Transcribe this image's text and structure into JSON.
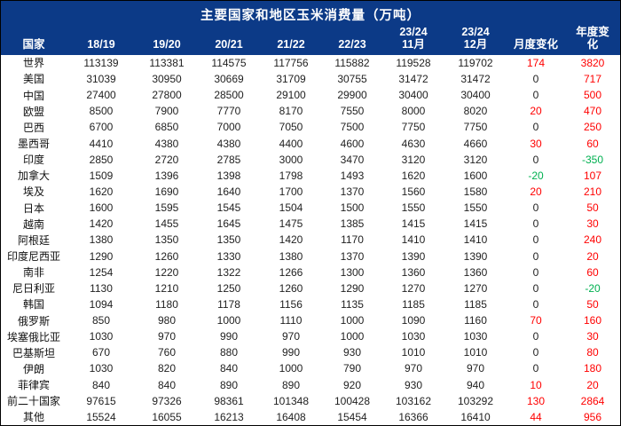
{
  "chart_data": {
    "type": "table",
    "title": "主要国家和地区玉米消费量（万吨）",
    "unit": "万吨",
    "columns": [
      {
        "label_lines": [
          "国家"
        ]
      },
      {
        "label_lines": [
          "18/19"
        ]
      },
      {
        "label_lines": [
          "19/20"
        ]
      },
      {
        "label_lines": [
          "20/21"
        ]
      },
      {
        "label_lines": [
          "21/22"
        ]
      },
      {
        "label_lines": [
          "22/23"
        ]
      },
      {
        "label_lines": [
          "23/24",
          "11月"
        ]
      },
      {
        "label_lines": [
          "23/24",
          "12月"
        ]
      },
      {
        "label_lines": [
          "月度变化"
        ]
      },
      {
        "label_lines": [
          "年度变",
          "化"
        ]
      }
    ],
    "rows": [
      {
        "country": "世界",
        "values": [
          113139,
          113381,
          114575,
          117756,
          115882,
          119528,
          119702
        ],
        "monthly_change": 174,
        "yearly_change": 3820
      },
      {
        "country": "美国",
        "values": [
          31039,
          30950,
          30669,
          31709,
          30755,
          31472,
          31472
        ],
        "monthly_change": 0,
        "yearly_change": 717
      },
      {
        "country": "中国",
        "values": [
          27400,
          27800,
          28500,
          29100,
          29900,
          30400,
          30400
        ],
        "monthly_change": 0,
        "yearly_change": 500
      },
      {
        "country": "欧盟",
        "values": [
          8500,
          7900,
          7770,
          8170,
          7550,
          8000,
          8020
        ],
        "monthly_change": 20,
        "yearly_change": 470
      },
      {
        "country": "巴西",
        "values": [
          6700,
          6850,
          7000,
          7050,
          7500,
          7750,
          7750
        ],
        "monthly_change": 0,
        "yearly_change": 250
      },
      {
        "country": "墨西哥",
        "values": [
          4410,
          4380,
          4380,
          4400,
          4600,
          4630,
          4660
        ],
        "monthly_change": 30,
        "yearly_change": 60
      },
      {
        "country": "印度",
        "values": [
          2850,
          2720,
          2785,
          3000,
          3470,
          3120,
          3120
        ],
        "monthly_change": 0,
        "yearly_change": -350
      },
      {
        "country": "加拿大",
        "values": [
          1509,
          1396,
          1398,
          1798,
          1493,
          1620,
          1600
        ],
        "monthly_change": -20,
        "yearly_change": 107
      },
      {
        "country": "埃及",
        "values": [
          1620,
          1690,
          1640,
          1700,
          1370,
          1560,
          1580
        ],
        "monthly_change": 20,
        "yearly_change": 210
      },
      {
        "country": "日本",
        "values": [
          1600,
          1595,
          1545,
          1504,
          1500,
          1550,
          1550
        ],
        "monthly_change": 0,
        "yearly_change": 50
      },
      {
        "country": "越南",
        "values": [
          1420,
          1455,
          1645,
          1475,
          1385,
          1415,
          1415
        ],
        "monthly_change": 0,
        "yearly_change": 30
      },
      {
        "country": "阿根廷",
        "values": [
          1380,
          1350,
          1350,
          1420,
          1170,
          1410,
          1410
        ],
        "monthly_change": 0,
        "yearly_change": 240
      },
      {
        "country": "印度尼西亚",
        "values": [
          1290,
          1260,
          1330,
          1380,
          1370,
          1390,
          1390
        ],
        "monthly_change": 0,
        "yearly_change": 20
      },
      {
        "country": "南非",
        "values": [
          1254,
          1220,
          1322,
          1266,
          1300,
          1360,
          1360
        ],
        "monthly_change": 0,
        "yearly_change": 60
      },
      {
        "country": "尼日利亚",
        "values": [
          1130,
          1210,
          1250,
          1260,
          1290,
          1270,
          1270
        ],
        "monthly_change": 0,
        "yearly_change": -20
      },
      {
        "country": "韩国",
        "values": [
          1094,
          1180,
          1178,
          1156,
          1135,
          1185,
          1185
        ],
        "monthly_change": 0,
        "yearly_change": 50
      },
      {
        "country": "俄罗斯",
        "values": [
          850,
          980,
          1000,
          1110,
          1000,
          1090,
          1160
        ],
        "monthly_change": 70,
        "yearly_change": 160
      },
      {
        "country": "埃塞俄比亚",
        "values": [
          1030,
          970,
          990,
          970,
          1000,
          1030,
          1030
        ],
        "monthly_change": 0,
        "yearly_change": 30
      },
      {
        "country": "巴基斯坦",
        "values": [
          670,
          760,
          880,
          990,
          930,
          1010,
          1010
        ],
        "monthly_change": 0,
        "yearly_change": 80
      },
      {
        "country": "伊朗",
        "values": [
          1030,
          820,
          840,
          1000,
          790,
          970,
          970
        ],
        "monthly_change": 0,
        "yearly_change": 180
      },
      {
        "country": "菲律宾",
        "values": [
          840,
          840,
          890,
          890,
          920,
          930,
          940
        ],
        "monthly_change": 10,
        "yearly_change": 20
      },
      {
        "country": "前二十国家",
        "values": [
          97615,
          97326,
          98361,
          101348,
          100428,
          103162,
          103292
        ],
        "monthly_change": 130,
        "yearly_change": 2864
      },
      {
        "country": "其他",
        "values": [
          15524,
          16055,
          16213,
          16408,
          15454,
          16366,
          16410
        ],
        "monthly_change": 44,
        "yearly_change": 956
      }
    ],
    "colors": {
      "header_background": "#0C3A87",
      "header_text": "#FFFFFF",
      "positive_change": "#FF0000",
      "negative_change": "#00B050",
      "zero_change": "#1F1F1F",
      "body_text": "#1F1F1F",
      "border": "#000000"
    },
    "layout": {
      "grid": "off",
      "change_color_rule": "positive red, negative green, zero black"
    }
  }
}
